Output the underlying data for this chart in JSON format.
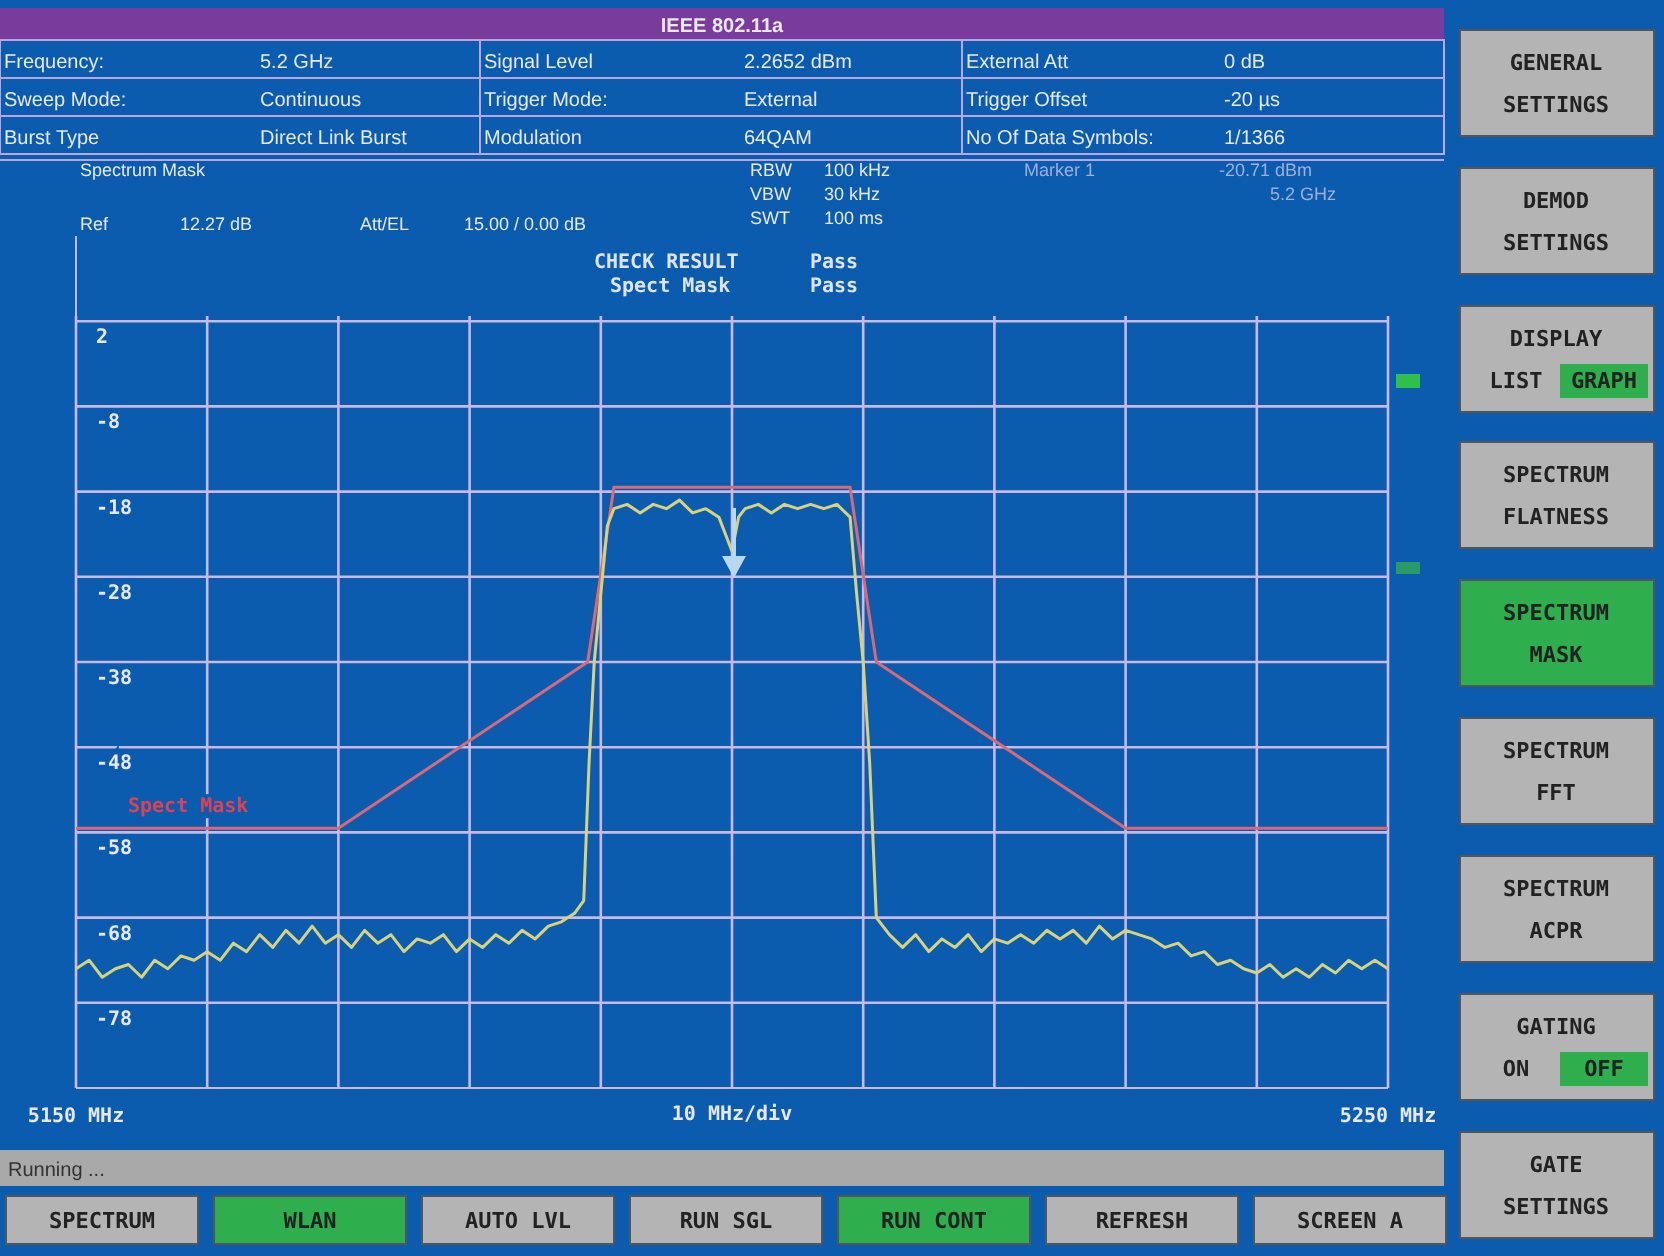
{
  "chart_data": {
    "type": "line",
    "title": "IEEE 802.11a",
    "subtitle": "Spectrum Mask",
    "xlabel": "10 MHz/div",
    "xlim": [
      5150,
      5250
    ],
    "xticks": [
      {
        "value": 5150,
        "label": "5150 MHz"
      },
      {
        "value": 5160,
        "label": null
      },
      {
        "value": 5170,
        "label": null
      },
      {
        "value": 5180,
        "label": null
      },
      {
        "value": 5190,
        "label": null
      },
      {
        "value": 5200,
        "label": null
      },
      {
        "value": 5210,
        "label": null
      },
      {
        "value": 5220,
        "label": null
      },
      {
        "value": 5230,
        "label": null
      },
      {
        "value": 5240,
        "label": null
      },
      {
        "value": 5250,
        "label": "5250 MHz"
      }
    ],
    "ylim": [
      -88,
      12
    ],
    "yticks": [
      2,
      -8,
      -18,
      -28,
      -38,
      -48,
      -58,
      -68,
      -78
    ],
    "grid": true,
    "marker": "none",
    "line_style": "solid",
    "series": [
      {
        "name": "Spect Mask",
        "color": "#d86a78",
        "x": [
          5150,
          5170,
          5189,
          5191,
          5209,
          5211,
          5230,
          5250
        ],
        "values": [
          -57.5,
          -57.5,
          -38,
          -17.5,
          -17.5,
          -38,
          -57.5,
          -57.5
        ]
      },
      {
        "color": "#d8d27a",
        "x": [
          5150,
          5151,
          5152,
          5153,
          5154,
          5155,
          5156,
          5157,
          5158,
          5159,
          5160,
          5161,
          5162,
          5163,
          5164,
          5165,
          5166,
          5167,
          5168,
          5169,
          5170,
          5171,
          5172,
          5173,
          5174,
          5175,
          5176,
          5177,
          5178,
          5179,
          5180,
          5181,
          5182,
          5183,
          5184,
          5185,
          5186,
          5187,
          5188,
          5188.7,
          5189.1,
          5189.5,
          5190,
          5190.5,
          5191,
          5192,
          5193,
          5194,
          5195,
          5196,
          5197,
          5198,
          5199,
          5200,
          5200.5,
          5201,
          5202,
          5203,
          5204,
          5205,
          5206,
          5207,
          5208,
          5209,
          5209.5,
          5210,
          5210.5,
          5211,
          5212,
          5213,
          5214,
          5215,
          5216,
          5217,
          5218,
          5219,
          5220,
          5221,
          5222,
          5223,
          5224,
          5225,
          5226,
          5227,
          5228,
          5229,
          5230,
          5231,
          5232,
          5233,
          5234,
          5235,
          5236,
          5237,
          5238,
          5239,
          5240,
          5241,
          5242,
          5243,
          5244,
          5245,
          5246,
          5247,
          5248,
          5249,
          5250
        ],
        "values": [
          -74,
          -73,
          -75,
          -74,
          -73.5,
          -75,
          -73,
          -74,
          -72.5,
          -73,
          -72,
          -73,
          -71,
          -72,
          -70,
          -71.5,
          -69.5,
          -71,
          -69,
          -71,
          -70,
          -71.5,
          -69.5,
          -71,
          -70,
          -72,
          -70.5,
          -71,
          -70,
          -72,
          -70.5,
          -71.5,
          -70,
          -71,
          -69.5,
          -70.5,
          -69,
          -68.5,
          -67.5,
          -66,
          -50,
          -38,
          -30,
          -22,
          -20,
          -19.5,
          -20.5,
          -19.5,
          -20,
          -19,
          -20.5,
          -20,
          -21,
          -25,
          -21,
          -20,
          -19.5,
          -20.5,
          -19.5,
          -20,
          -19.5,
          -20,
          -19.5,
          -21,
          -30,
          -38,
          -50,
          -68,
          -70,
          -71.5,
          -70,
          -72,
          -70.5,
          -71.5,
          -70,
          -72,
          -70.5,
          -71,
          -70,
          -71,
          -69.5,
          -70.5,
          -69.5,
          -71,
          -69,
          -70.5,
          -69.5,
          -70,
          -70.5,
          -71.5,
          -71,
          -72.5,
          -72,
          -73.5,
          -73,
          -74,
          -74.5,
          -73.5,
          -75,
          -74,
          -75,
          -73.5,
          -74.5,
          -73,
          -74,
          -73,
          -74
        ]
      }
    ],
    "annotations": [
      "Frequency:",
      "5.2 GHz",
      "Signal Level",
      "2.2652 dBm",
      "External Att",
      "0 dB",
      "Sweep Mode:",
      "Continuous",
      "Trigger Mode:",
      "External",
      "Trigger Offset",
      "-20 µs",
      "Burst Type",
      "Direct Link Burst",
      "Modulation",
      "64QAM",
      "No Of Data Symbols:",
      "1/1366",
      "Ref",
      "12.27 dB",
      "Att/EL",
      "15.00 / 0.00 dB",
      "RBW",
      "100 kHz",
      "VBW",
      "30 kHz",
      "SWT",
      "100 ms",
      "Marker 1",
      "-20.71 dBm",
      "5.2 GHz",
      "CHECK RESULT",
      "Pass",
      "Spect Mask",
      "Pass",
      "Running ...",
      "SPECTRUM",
      "WLAN",
      "AUTO LVL",
      "RUN SGL",
      "RUN CONT",
      "REFRESH",
      "SCREEN A",
      "GENERAL",
      "SETTINGS",
      "DEMOD",
      "SETTINGS",
      "DISPLAY",
      "LIST",
      "GRAPH",
      "SPECTRUM",
      "FLATNESS",
      "SPECTRUM",
      "MASK",
      "SPECTRUM",
      "FFT",
      "SPECTRUM",
      "ACPR",
      "GATING",
      "ON",
      "OFF",
      "GATE",
      "SETTINGS"
    ]
  }
}
